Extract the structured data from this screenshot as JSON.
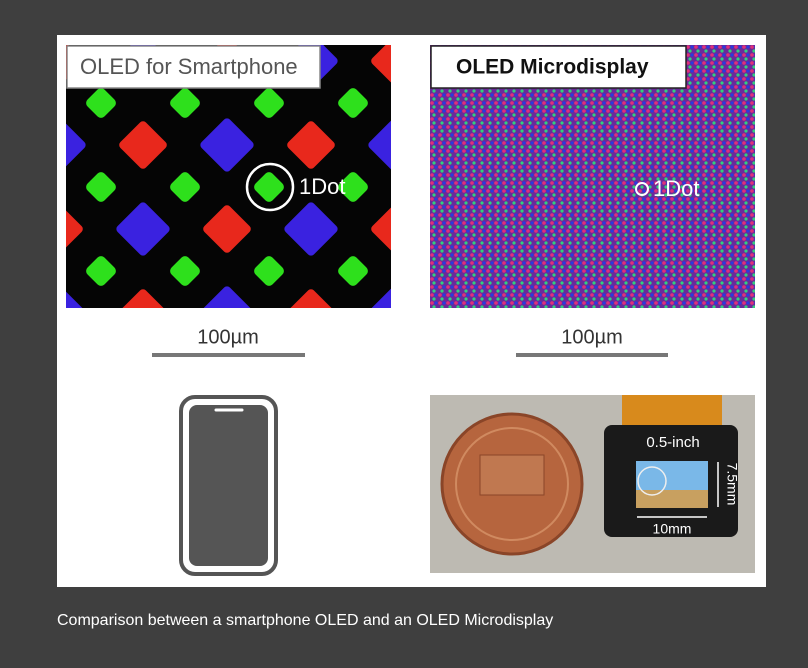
{
  "figure": {
    "panels": [
      {
        "label": "OLED for Smartphone",
        "dot_label": "1Dot",
        "scale_label": "100µm"
      },
      {
        "label": "OLED Microdisplay",
        "dot_label": "1Dot",
        "scale_label": "100µm"
      }
    ],
    "photo": {
      "diagonal": "0.5-inch",
      "height": "7.5mm",
      "width": "10mm"
    }
  },
  "caption": "Comparison between a smartphone OLED and an OLED Microdisplay"
}
